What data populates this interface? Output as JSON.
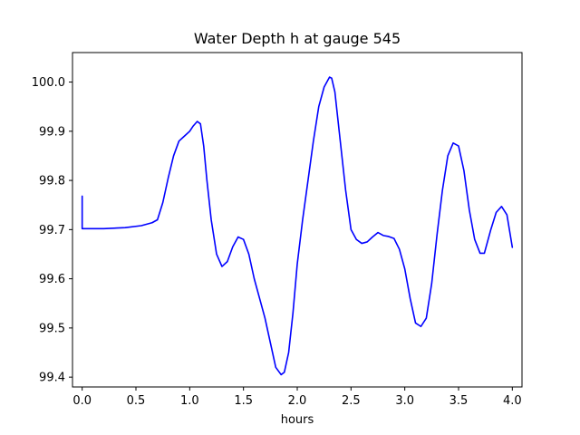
{
  "chart_data": {
    "type": "line",
    "title": "Water Depth h at gauge 545",
    "xlabel": "hours",
    "ylabel": "",
    "xlim": [
      -0.09,
      4.09
    ],
    "ylim": [
      99.38,
      100.06
    ],
    "xticks": [
      0.0,
      0.5,
      1.0,
      1.5,
      2.0,
      2.5,
      3.0,
      3.5,
      4.0
    ],
    "xtick_labels": [
      "0.0",
      "0.5",
      "1.0",
      "1.5",
      "2.0",
      "2.5",
      "3.0",
      "3.5",
      "4.0"
    ],
    "yticks": [
      99.4,
      99.5,
      99.6,
      99.7,
      99.8,
      99.9,
      100.0
    ],
    "ytick_labels": [
      "99.4",
      "99.5",
      "99.6",
      "99.7",
      "99.8",
      "99.9",
      "100.0"
    ],
    "grid": false,
    "legend": "none",
    "series": [
      {
        "color": "#0000ff",
        "x": [
          0.0,
          0.0,
          0.01,
          0.2,
          0.4,
          0.55,
          0.65,
          0.7,
          0.75,
          0.8,
          0.85,
          0.9,
          0.95,
          1.0,
          1.03,
          1.07,
          1.1,
          1.13,
          1.16,
          1.2,
          1.25,
          1.3,
          1.35,
          1.4,
          1.45,
          1.5,
          1.55,
          1.6,
          1.65,
          1.7,
          1.75,
          1.8,
          1.85,
          1.88,
          1.92,
          1.96,
          2.0,
          2.05,
          2.1,
          2.15,
          2.2,
          2.25,
          2.3,
          2.32,
          2.35,
          2.4,
          2.45,
          2.5,
          2.55,
          2.6,
          2.65,
          2.7,
          2.75,
          2.8,
          2.85,
          2.9,
          2.95,
          3.0,
          3.05,
          3.1,
          3.15,
          3.2,
          3.25,
          3.3,
          3.35,
          3.4,
          3.45,
          3.5,
          3.55,
          3.6,
          3.65,
          3.7,
          3.74,
          3.8,
          3.85,
          3.9,
          3.95,
          4.0
        ],
        "y": [
          99.768,
          99.702,
          99.702,
          99.702,
          99.704,
          99.708,
          99.714,
          99.72,
          99.755,
          99.805,
          99.85,
          99.88,
          99.89,
          99.9,
          99.91,
          99.92,
          99.915,
          99.87,
          99.8,
          99.72,
          99.65,
          99.625,
          99.635,
          99.665,
          99.685,
          99.68,
          99.65,
          99.6,
          99.56,
          99.52,
          99.47,
          99.42,
          99.405,
          99.41,
          99.45,
          99.53,
          99.63,
          99.72,
          99.8,
          99.88,
          99.95,
          99.99,
          100.01,
          100.008,
          99.98,
          99.88,
          99.78,
          99.7,
          99.68,
          99.672,
          99.675,
          99.685,
          99.694,
          99.688,
          99.686,
          99.682,
          99.66,
          99.62,
          99.56,
          99.51,
          99.503,
          99.52,
          99.59,
          99.69,
          99.78,
          99.85,
          99.876,
          99.87,
          99.82,
          99.74,
          99.68,
          99.652,
          99.652,
          99.7,
          99.735,
          99.747,
          99.73,
          99.664
        ]
      }
    ]
  }
}
